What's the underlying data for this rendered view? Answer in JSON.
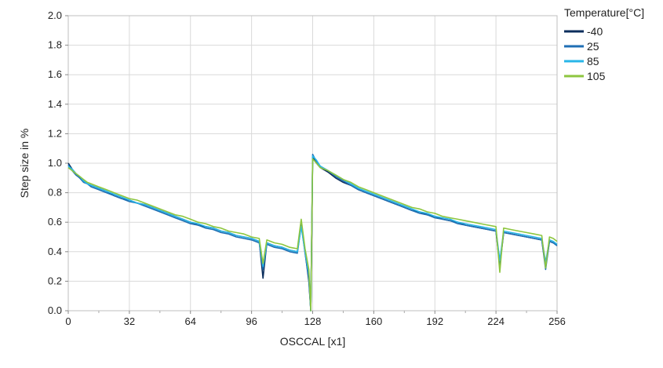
{
  "chart_data": {
    "type": "line",
    "xlabel": "OSCCAL [x1]",
    "ylabel": "Step size in %",
    "xlim": [
      0,
      256
    ],
    "ylim": [
      0,
      2.0
    ],
    "xticks": [
      "0",
      "32",
      "64",
      "96",
      "128",
      "160",
      "192",
      "224",
      "256"
    ],
    "yticks": [
      "0.0",
      "0.2",
      "0.4",
      "0.6",
      "0.8",
      "1.0",
      "1.2",
      "1.4",
      "1.6",
      "1.8",
      "2.0"
    ],
    "grid": true,
    "legend_title": "Temperature[°C]",
    "legend_position": "top-right",
    "series": [
      {
        "name": "-40",
        "color": "#0b2e5c",
        "x": [
          0,
          2,
          4,
          6,
          8,
          10,
          12,
          16,
          20,
          24,
          28,
          32,
          36,
          40,
          44,
          48,
          52,
          56,
          60,
          64,
          68,
          72,
          76,
          80,
          84,
          88,
          92,
          96,
          100,
          102,
          104,
          108,
          112,
          116,
          120,
          122,
          124,
          126,
          127,
          128,
          130,
          132,
          136,
          140,
          144,
          148,
          152,
          156,
          160,
          164,
          168,
          172,
          176,
          180,
          184,
          188,
          192,
          196,
          200,
          204,
          208,
          212,
          216,
          220,
          224,
          226,
          228,
          232,
          236,
          240,
          244,
          248,
          250,
          252,
          254,
          256
        ],
        "y": [
          1.0,
          0.96,
          0.93,
          0.9,
          0.88,
          0.86,
          0.85,
          0.83,
          0.81,
          0.78,
          0.76,
          0.75,
          0.73,
          0.72,
          0.7,
          0.68,
          0.66,
          0.64,
          0.62,
          0.6,
          0.58,
          0.57,
          0.56,
          0.54,
          0.53,
          0.51,
          0.5,
          0.49,
          0.47,
          0.22,
          0.46,
          0.44,
          0.43,
          0.41,
          0.4,
          0.6,
          0.4,
          0.2,
          0.0,
          1.04,
          1.0,
          0.97,
          0.94,
          0.9,
          0.87,
          0.85,
          0.82,
          0.8,
          0.78,
          0.76,
          0.74,
          0.72,
          0.7,
          0.68,
          0.67,
          0.65,
          0.64,
          0.62,
          0.61,
          0.6,
          0.58,
          0.57,
          0.56,
          0.55,
          0.54,
          0.3,
          0.53,
          0.52,
          0.51,
          0.5,
          0.49,
          0.48,
          0.3,
          0.47,
          0.46,
          0.45
        ]
      },
      {
        "name": "25",
        "color": "#1f6fb4",
        "x": [
          0,
          2,
          4,
          6,
          8,
          10,
          12,
          16,
          20,
          24,
          28,
          32,
          36,
          40,
          44,
          48,
          52,
          56,
          60,
          64,
          68,
          72,
          76,
          80,
          84,
          88,
          92,
          96,
          100,
          102,
          104,
          108,
          112,
          116,
          120,
          122,
          124,
          126,
          127,
          128,
          130,
          132,
          136,
          140,
          144,
          148,
          152,
          156,
          160,
          164,
          168,
          172,
          176,
          180,
          184,
          188,
          192,
          196,
          200,
          204,
          208,
          212,
          216,
          220,
          224,
          226,
          228,
          232,
          236,
          240,
          244,
          248,
          250,
          252,
          254,
          256
        ],
        "y": [
          0.99,
          0.95,
          0.92,
          0.9,
          0.87,
          0.86,
          0.84,
          0.82,
          0.8,
          0.78,
          0.76,
          0.74,
          0.73,
          0.71,
          0.69,
          0.67,
          0.65,
          0.63,
          0.61,
          0.59,
          0.58,
          0.56,
          0.55,
          0.53,
          0.52,
          0.5,
          0.49,
          0.48,
          0.46,
          0.28,
          0.45,
          0.43,
          0.42,
          0.4,
          0.39,
          0.58,
          0.39,
          0.22,
          0.0,
          1.06,
          1.01,
          0.98,
          0.95,
          0.91,
          0.88,
          0.85,
          0.82,
          0.8,
          0.78,
          0.76,
          0.74,
          0.72,
          0.7,
          0.68,
          0.66,
          0.65,
          0.63,
          0.62,
          0.61,
          0.59,
          0.58,
          0.57,
          0.56,
          0.55,
          0.54,
          0.32,
          0.53,
          0.52,
          0.51,
          0.5,
          0.49,
          0.48,
          0.28,
          0.47,
          0.46,
          0.44
        ]
      },
      {
        "name": "85",
        "color": "#29b6e8",
        "x": [
          0,
          2,
          4,
          6,
          8,
          10,
          12,
          16,
          20,
          24,
          28,
          32,
          36,
          40,
          44,
          48,
          52,
          56,
          60,
          64,
          68,
          72,
          76,
          80,
          84,
          88,
          92,
          96,
          100,
          102,
          104,
          108,
          112,
          116,
          120,
          122,
          124,
          126,
          127,
          128,
          130,
          132,
          136,
          140,
          144,
          148,
          152,
          156,
          160,
          164,
          168,
          172,
          176,
          180,
          184,
          188,
          192,
          196,
          200,
          204,
          208,
          212,
          216,
          220,
          224,
          226,
          228,
          232,
          236,
          240,
          244,
          248,
          250,
          252,
          254,
          256
        ],
        "y": [
          0.98,
          0.96,
          0.93,
          0.91,
          0.88,
          0.86,
          0.85,
          0.83,
          0.81,
          0.79,
          0.77,
          0.75,
          0.73,
          0.72,
          0.7,
          0.68,
          0.66,
          0.64,
          0.62,
          0.6,
          0.59,
          0.57,
          0.56,
          0.54,
          0.53,
          0.51,
          0.5,
          0.49,
          0.47,
          0.3,
          0.46,
          0.44,
          0.43,
          0.41,
          0.4,
          0.57,
          0.4,
          0.25,
          0.0,
          1.05,
          1.02,
          0.98,
          0.95,
          0.92,
          0.89,
          0.86,
          0.83,
          0.81,
          0.79,
          0.77,
          0.75,
          0.73,
          0.71,
          0.69,
          0.67,
          0.66,
          0.64,
          0.63,
          0.62,
          0.6,
          0.59,
          0.58,
          0.57,
          0.56,
          0.55,
          0.34,
          0.54,
          0.53,
          0.52,
          0.51,
          0.5,
          0.49,
          0.33,
          0.48,
          0.47,
          0.45
        ]
      },
      {
        "name": "105",
        "color": "#8dc63f",
        "x": [
          0,
          2,
          4,
          6,
          8,
          10,
          12,
          16,
          20,
          24,
          28,
          32,
          36,
          40,
          44,
          48,
          52,
          56,
          60,
          64,
          68,
          72,
          76,
          80,
          84,
          88,
          92,
          96,
          100,
          102,
          104,
          108,
          112,
          116,
          120,
          122,
          124,
          126,
          127,
          128,
          130,
          132,
          136,
          140,
          144,
          148,
          152,
          156,
          160,
          164,
          168,
          172,
          176,
          180,
          184,
          188,
          192,
          196,
          200,
          204,
          208,
          212,
          216,
          220,
          224,
          226,
          228,
          232,
          236,
          240,
          244,
          248,
          250,
          252,
          254,
          256
        ],
        "y": [
          0.97,
          0.95,
          0.93,
          0.91,
          0.89,
          0.87,
          0.86,
          0.84,
          0.82,
          0.8,
          0.78,
          0.76,
          0.75,
          0.73,
          0.71,
          0.69,
          0.67,
          0.65,
          0.64,
          0.62,
          0.6,
          0.59,
          0.57,
          0.56,
          0.54,
          0.53,
          0.52,
          0.5,
          0.49,
          0.32,
          0.48,
          0.46,
          0.45,
          0.43,
          0.42,
          0.62,
          0.42,
          0.28,
          0.0,
          1.03,
          1.0,
          0.97,
          0.95,
          0.92,
          0.89,
          0.87,
          0.84,
          0.82,
          0.8,
          0.78,
          0.76,
          0.74,
          0.72,
          0.7,
          0.69,
          0.67,
          0.66,
          0.64,
          0.63,
          0.62,
          0.61,
          0.6,
          0.59,
          0.58,
          0.57,
          0.26,
          0.56,
          0.55,
          0.54,
          0.53,
          0.52,
          0.51,
          0.29,
          0.5,
          0.49,
          0.47
        ]
      }
    ]
  }
}
